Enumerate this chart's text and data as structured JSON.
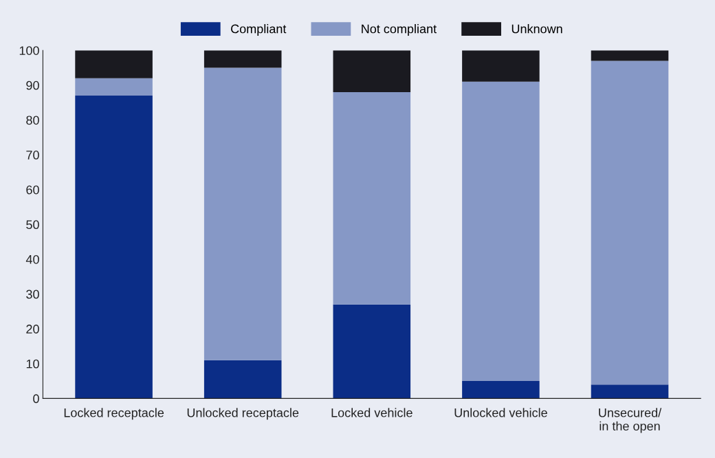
{
  "chart_data": {
    "type": "bar",
    "stacked": true,
    "categories": [
      "Locked receptacle",
      "Unlocked receptacle",
      "Locked vehicle",
      "Unlocked vehicle",
      "Unsecured/\nin the open"
    ],
    "series": [
      {
        "name": "Compliant",
        "color": "#0b2d87",
        "values": [
          87,
          11,
          27,
          5,
          4
        ]
      },
      {
        "name": "Not compliant",
        "color": "#8698c6",
        "values": [
          5,
          84,
          61,
          86,
          93
        ]
      },
      {
        "name": "Unknown",
        "color": "#1a1a20",
        "values": [
          8,
          5,
          12,
          9,
          3
        ]
      }
    ],
    "ylim": [
      0,
      100
    ],
    "yticks": [
      0,
      10,
      20,
      30,
      40,
      50,
      60,
      70,
      80,
      90,
      100
    ],
    "grid": false,
    "legend": "top"
  }
}
